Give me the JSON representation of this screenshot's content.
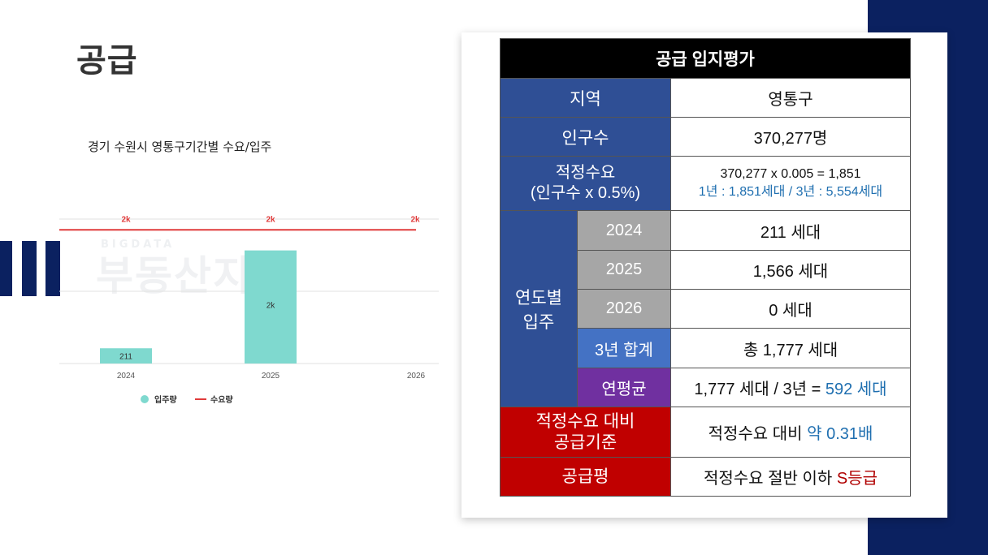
{
  "page": {
    "title": "공급"
  },
  "watermark": {
    "sub": "BIGDATA",
    "main": "부동산지인"
  },
  "chart_data": {
    "type": "bar",
    "title": "경기 수원시 영통구기간별 수요/입주",
    "categories": [
      "2024",
      "2025",
      "2026"
    ],
    "series": [
      {
        "name": "입주량",
        "kind": "bar",
        "values": [
          211,
          1566,
          0
        ],
        "labels": [
          "211",
          "2k",
          ""
        ],
        "color": "#7fd9cf"
      },
      {
        "name": "수요량",
        "kind": "line",
        "values": [
          1851,
          1851,
          1851
        ],
        "labels": [
          "2k",
          "2k",
          "2k"
        ],
        "color": "#e03b3b"
      }
    ],
    "ylim": [
      0,
      2000
    ],
    "grid": true,
    "legend": "bottom"
  },
  "table": {
    "header": "공급 입지평가",
    "region": {
      "label": "지역",
      "value": "영통구"
    },
    "population": {
      "label": "인구수",
      "value": "370,277명"
    },
    "demand": {
      "label_line1": "적정수요",
      "label_line2": "(인구수 x 0.5%)",
      "value_line1": "370,277 x 0.005 = 1,851",
      "value_line2": "1년 : 1,851세대 / 3년 : 5,554세대"
    },
    "yearly": {
      "label_line1": "연도별",
      "label_line2": "입주",
      "rows": [
        {
          "year": "2024",
          "value": "211 세대"
        },
        {
          "year": "2025",
          "value": "1,566 세대"
        },
        {
          "year": "2026",
          "value": "0 세대"
        }
      ],
      "total_label": "3년 합계",
      "total_value": "총 1,777 세대",
      "avg_label": "연평균",
      "avg_value_prefix": "1,777 세대 / 3년 = ",
      "avg_value_highlight": "592 세대"
    },
    "ratio": {
      "label_line1": "적정수요 대비",
      "label_line2": "공급기준",
      "value_prefix": "적정수요 대비 ",
      "value_highlight": "약 0.31배"
    },
    "grade": {
      "label": "공급평",
      "value_prefix": "적정수요 절반 이하 ",
      "value_highlight": "S등급"
    }
  }
}
